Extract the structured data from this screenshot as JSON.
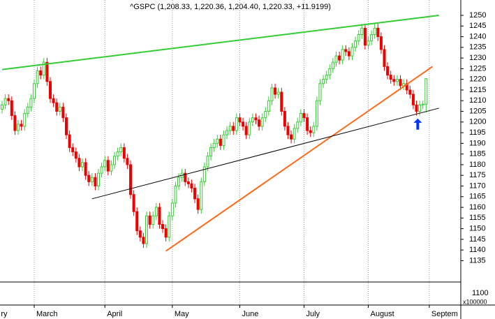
{
  "chart_data": {
    "type": "candlestick",
    "title": "^GSPC (1,208.33, 1,220.36, 1,204.40, 1,220.33, +11.9199)",
    "up_color": "#33cc33",
    "down_color": "#ee0000",
    "xlim": [
      -0.65,
      142.8
    ],
    "ylim": [
      1125,
      1257.2
    ],
    "yticks": [
      1135,
      1140,
      1145,
      1150,
      1155,
      1160,
      1165,
      1170,
      1175,
      1180,
      1185,
      1190,
      1195,
      1200,
      1205,
      1210,
      1215,
      1220,
      1225,
      1230,
      1235,
      1240,
      1245,
      1250
    ],
    "xticks": [
      {
        "value": -1,
        "label": "ry"
      },
      {
        "value": 10,
        "label": "March"
      },
      {
        "value": 32,
        "label": "April"
      },
      {
        "value": 53,
        "label": "May"
      },
      {
        "value": 74,
        "label": "June"
      },
      {
        "value": 94,
        "label": "July"
      },
      {
        "value": 114,
        "label": "August"
      },
      {
        "value": 133,
        "label": "Septem"
      }
    ],
    "open": [
      1206,
      1208,
      1211,
      1210,
      1203,
      1196,
      1199,
      1198,
      1204,
      1207,
      1211,
      1218,
      1224,
      1222,
      1228,
      1219,
      1211,
      1209,
      1205,
      1207,
      1202,
      1194,
      1188,
      1186,
      1183,
      1179,
      1181,
      1175,
      1172,
      1174,
      1170,
      1176,
      1179,
      1182,
      1177,
      1180,
      1184,
      1186,
      1188,
      1183,
      1180,
      1166,
      1158,
      1149,
      1146,
      1143,
      1156,
      1152,
      1156,
      1160,
      1152,
      1150,
      1146,
      1156,
      1162,
      1170,
      1174,
      1176,
      1172,
      1171,
      1169,
      1164,
      1159,
      1172,
      1179,
      1184,
      1188,
      1190,
      1192,
      1189,
      1194,
      1196,
      1198,
      1196,
      1202,
      1200,
      1198,
      1194,
      1200,
      1202,
      1201,
      1198,
      1202,
      1205,
      1210,
      1216,
      1213,
      1214,
      1205,
      1198,
      1194,
      1192,
      1197,
      1200,
      1204,
      1202,
      1196,
      1195,
      1198,
      1210,
      1218,
      1220,
      1222,
      1225,
      1228,
      1231,
      1229,
      1234,
      1233,
      1231,
      1235,
      1238,
      1241,
      1244,
      1236,
      1238,
      1241,
      1244,
      1240,
      1234,
      1226,
      1222,
      1220,
      1219,
      1220,
      1217,
      1218,
      1215,
      1213,
      1208,
      1205,
      1208,
      1208.33
    ],
    "high": [
      1210,
      1213,
      1213,
      1212,
      1205,
      1201,
      1201,
      1206,
      1209,
      1213,
      1220,
      1226,
      1226,
      1230,
      1230,
      1221,
      1213,
      1211,
      1209,
      1209,
      1204,
      1196,
      1190,
      1188,
      1185,
      1183,
      1183,
      1177,
      1176,
      1176,
      1178,
      1181,
      1184,
      1184,
      1182,
      1186,
      1188,
      1190,
      1190,
      1185,
      1182,
      1168,
      1160,
      1151,
      1148,
      1158,
      1158,
      1158,
      1162,
      1162,
      1154,
      1152,
      1158,
      1164,
      1172,
      1176,
      1178,
      1178,
      1174,
      1173,
      1171,
      1166,
      1174,
      1181,
      1186,
      1190,
      1192,
      1194,
      1194,
      1196,
      1198,
      1200,
      1200,
      1204,
      1204,
      1202,
      1200,
      1202,
      1204,
      1204,
      1203,
      1204,
      1207,
      1212,
      1218,
      1218,
      1216,
      1216,
      1207,
      1200,
      1196,
      1199,
      1202,
      1206,
      1206,
      1204,
      1198,
      1200,
      1212,
      1220,
      1222,
      1224,
      1227,
      1230,
      1233,
      1233,
      1236,
      1236,
      1235,
      1237,
      1240,
      1243,
      1246,
      1246,
      1240,
      1243,
      1246,
      1246,
      1242,
      1236,
      1228,
      1224,
      1222,
      1222,
      1222,
      1220,
      1220,
      1217,
      1215,
      1210,
      1210,
      1210,
      1220.36
    ],
    "low": [
      1204,
      1206,
      1208,
      1201,
      1194,
      1194,
      1196,
      1196,
      1202,
      1205,
      1209,
      1216,
      1220,
      1220,
      1217,
      1209,
      1207,
      1203,
      1203,
      1200,
      1192,
      1186,
      1184,
      1181,
      1177,
      1177,
      1173,
      1170,
      1170,
      1168,
      1168,
      1174,
      1177,
      1175,
      1175,
      1178,
      1182,
      1184,
      1181,
      1178,
      1164,
      1156,
      1147,
      1144,
      1141,
      1141,
      1150,
      1150,
      1154,
      1150,
      1148,
      1144,
      1144,
      1154,
      1160,
      1168,
      1172,
      1170,
      1169,
      1167,
      1162,
      1157,
      1157,
      1170,
      1177,
      1182,
      1186,
      1188,
      1187,
      1187,
      1192,
      1194,
      1194,
      1194,
      1198,
      1196,
      1192,
      1192,
      1198,
      1199,
      1196,
      1196,
      1200,
      1203,
      1208,
      1211,
      1211,
      1203,
      1196,
      1192,
      1190,
      1190,
      1195,
      1198,
      1200,
      1194,
      1193,
      1193,
      1196,
      1208,
      1216,
      1218,
      1220,
      1223,
      1226,
      1227,
      1227,
      1231,
      1229,
      1229,
      1233,
      1236,
      1239,
      1234,
      1234,
      1236,
      1239,
      1238,
      1232,
      1224,
      1220,
      1218,
      1217,
      1217,
      1215,
      1215,
      1213,
      1211,
      1206,
      1203,
      1203,
      1206,
      1204.4
    ],
    "close": [
      1208,
      1211,
      1210,
      1203,
      1196,
      1199,
      1198,
      1204,
      1207,
      1211,
      1218,
      1224,
      1222,
      1228,
      1219,
      1211,
      1209,
      1205,
      1207,
      1202,
      1194,
      1188,
      1186,
      1183,
      1179,
      1181,
      1175,
      1172,
      1174,
      1170,
      1176,
      1179,
      1182,
      1177,
      1180,
      1184,
      1186,
      1188,
      1183,
      1180,
      1166,
      1158,
      1149,
      1146,
      1143,
      1156,
      1152,
      1156,
      1160,
      1152,
      1150,
      1146,
      1156,
      1162,
      1170,
      1174,
      1176,
      1172,
      1171,
      1169,
      1164,
      1159,
      1172,
      1179,
      1184,
      1188,
      1190,
      1192,
      1189,
      1194,
      1196,
      1198,
      1196,
      1202,
      1200,
      1198,
      1194,
      1200,
      1202,
      1201,
      1198,
      1202,
      1205,
      1210,
      1216,
      1213,
      1214,
      1205,
      1198,
      1194,
      1192,
      1197,
      1200,
      1204,
      1202,
      1196,
      1195,
      1198,
      1210,
      1218,
      1220,
      1222,
      1225,
      1228,
      1231,
      1229,
      1234,
      1233,
      1231,
      1235,
      1238,
      1241,
      1244,
      1236,
      1238,
      1241,
      1244,
      1240,
      1234,
      1226,
      1222,
      1220,
      1219,
      1220,
      1217,
      1218,
      1215,
      1213,
      1208,
      1205,
      1208,
      1208.41,
      1220.33
    ],
    "trendlines": [
      {
        "color": "#33cc33",
        "x": [
          0,
          136
        ],
        "y": [
          1224.6,
          1250
        ]
      },
      {
        "color": "#ff6a1a",
        "x": [
          51,
          134
        ],
        "y": [
          1139.5,
          1226
        ]
      },
      {
        "color": "#000000",
        "x": [
          28,
          136
        ],
        "y": [
          1164,
          1206.5
        ]
      }
    ],
    "arrow": {
      "color": "#0033ff",
      "x": 129.4,
      "y": [
        1196.4,
        1201.6
      ]
    },
    "volume_pane": {
      "tick": "1100",
      "unit": "x100000"
    }
  }
}
